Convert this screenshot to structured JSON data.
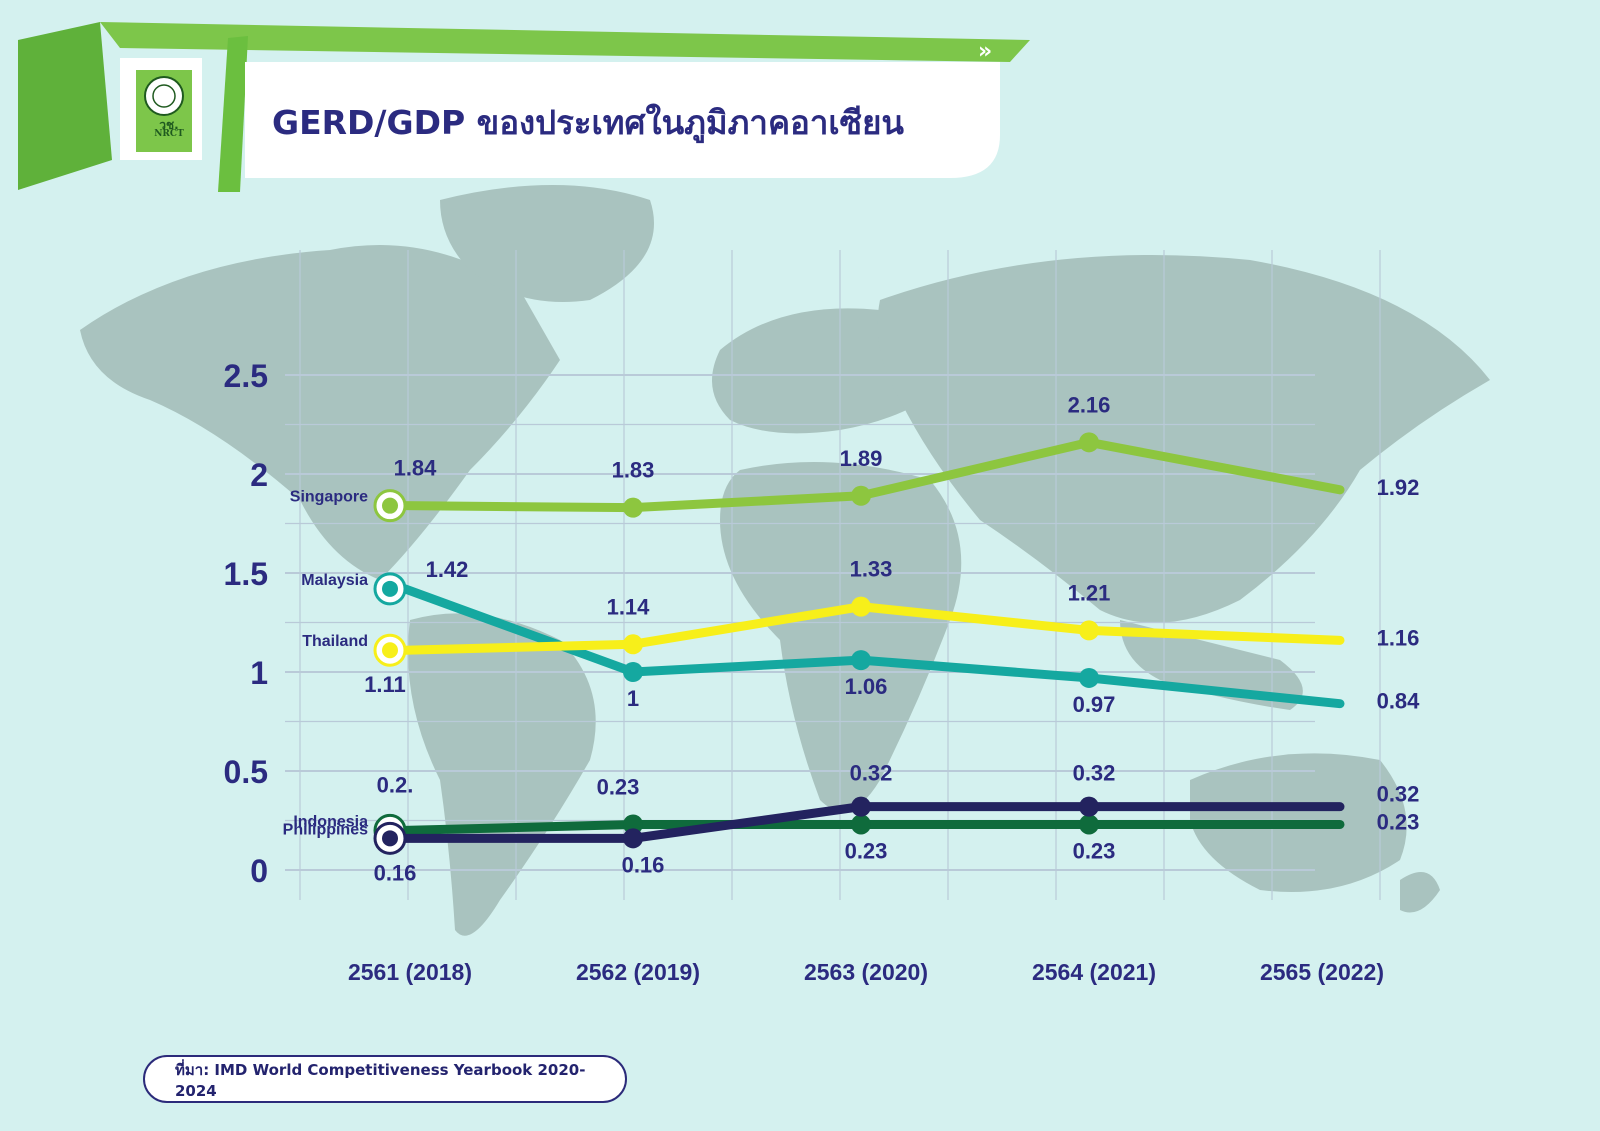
{
  "header": {
    "title": "GERD/GDP ของประเทศในภูมิภาคอาเซียน",
    "logo_thai": "วช.",
    "logo_abbr": "NRCT",
    "arrow_glyph": "»"
  },
  "source": {
    "text": "ที่มา: IMD World Competitiveness Yearbook 2020-2024"
  },
  "colors": {
    "background": "#d4f1ef",
    "map": "#a9c3bf",
    "grid": "#b9cad8",
    "banner_green": "#7dc64a",
    "title_navy": "#2b2b80",
    "singapore": "#8dc63f",
    "malaysia": "#15a8a0",
    "thailand": "#f7ef1a",
    "indonesia": "#0f6b3c",
    "philippines": "#23235f"
  },
  "chart_data": {
    "type": "line",
    "title": "GERD/GDP ของประเทศในภูมิภาคอาเซียน",
    "xlabel": "",
    "ylabel": "",
    "categories": [
      "2561 (2018)",
      "2562 (2019)",
      "2563 (2020)",
      "2564 (2021)",
      "2565 (2022)"
    ],
    "y_ticks": [
      "0",
      "0.5",
      "1",
      "1.5",
      "2",
      "2.5"
    ],
    "ylim": [
      0,
      2.5
    ],
    "grid": true,
    "series": [
      {
        "name": "Singapore",
        "color": "#8dc63f",
        "values": [
          1.84,
          1.83,
          1.89,
          2.16,
          1.92
        ],
        "labels": [
          "1.84",
          "1.83",
          "1.89",
          "2.16",
          "1.92"
        ]
      },
      {
        "name": "Malaysia",
        "color": "#15a8a0",
        "values": [
          1.42,
          1.0,
          1.06,
          0.97,
          0.84
        ],
        "labels": [
          "1.42",
          "1",
          "1.06",
          "0.97",
          "0.84"
        ]
      },
      {
        "name": "Thailand",
        "color": "#f7ef1a",
        "values": [
          1.11,
          1.14,
          1.33,
          1.21,
          1.16
        ],
        "labels": [
          "1.11",
          "1.14",
          "1.33",
          "1.21",
          "1.16"
        ]
      },
      {
        "name": "Indonesia",
        "color": "#0f6b3c",
        "values": [
          0.2,
          0.23,
          0.23,
          0.23,
          0.23
        ],
        "labels": [
          "0.2.",
          "0.23",
          "0.23",
          "0.23",
          "0.23"
        ]
      },
      {
        "name": "Philippines",
        "color": "#23235f",
        "values": [
          0.16,
          0.16,
          0.32,
          0.32,
          0.32
        ],
        "labels": [
          "0.16",
          "0.16",
          "0.32",
          "0.32",
          "0.32"
        ]
      }
    ]
  }
}
